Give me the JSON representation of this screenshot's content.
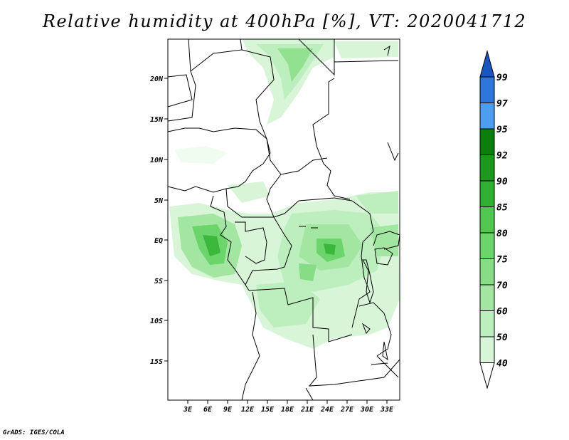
{
  "title": "Relative humidity at 400hPa [%], VT: 2020041712",
  "credit": "GrADS: IGES/COLA",
  "map": {
    "lat_labels": [
      "20N",
      "15N",
      "10N",
      "5N",
      "EQ",
      "5S",
      "10S",
      "15S"
    ],
    "lon_labels": [
      "3E",
      "6E",
      "9E",
      "12E",
      "15E",
      "18E",
      "21E",
      "24E",
      "27E",
      "30E",
      "33E"
    ],
    "lat_range": [
      -20,
      25
    ],
    "lon_range": [
      0,
      35
    ]
  },
  "colorbar": {
    "levels": [
      "40",
      "50",
      "60",
      "70",
      "75",
      "80",
      "85",
      "90",
      "92",
      "95",
      "97",
      "99"
    ],
    "colors": [
      "#f0fcf0",
      "#d8f5d8",
      "#bdeebd",
      "#a2e6a2",
      "#86dd86",
      "#6bd46b",
      "#50c850",
      "#30b030",
      "#1c981c",
      "#0a800a",
      "#4d9ef0",
      "#2e75dc",
      "#1a56c0"
    ]
  }
}
